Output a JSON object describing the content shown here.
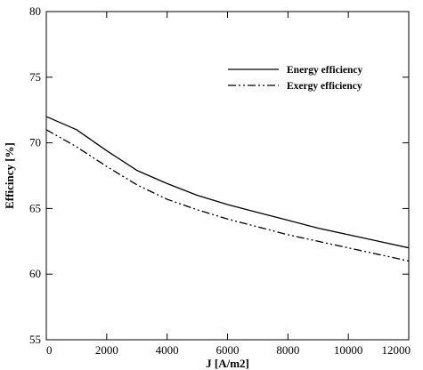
{
  "chart_data": {
    "type": "line",
    "title": "",
    "xlabel": "J [A/m2]",
    "ylabel": "Efficincy [%]",
    "xlim": [
      0,
      12000
    ],
    "ylim": [
      55,
      80
    ],
    "xticks": [
      0,
      2000,
      4000,
      6000,
      8000,
      10000,
      12000
    ],
    "yticks": [
      55,
      60,
      65,
      70,
      75,
      80
    ],
    "grid": false,
    "legend_position": "top-right",
    "series": [
      {
        "name": "Energy efficiency",
        "line_style": "solid",
        "color": "#000000",
        "x": [
          0,
          1000,
          2000,
          3000,
          4000,
          5000,
          6000,
          7000,
          8000,
          9000,
          10000,
          11000,
          12000
        ],
        "y": [
          72.0,
          71.0,
          69.4,
          67.9,
          66.9,
          66.0,
          65.3,
          64.7,
          64.1,
          63.5,
          63.0,
          62.5,
          62.0
        ]
      },
      {
        "name": "Exergy efficiency",
        "line_style": "dash-dot-dot",
        "color": "#000000",
        "x": [
          0,
          1000,
          2000,
          3000,
          4000,
          5000,
          6000,
          7000,
          8000,
          9000,
          10000,
          11000,
          12000
        ],
        "y": [
          71.0,
          69.7,
          68.2,
          66.8,
          65.7,
          64.9,
          64.2,
          63.6,
          63.0,
          62.5,
          62.0,
          61.5,
          61.0
        ]
      }
    ]
  }
}
